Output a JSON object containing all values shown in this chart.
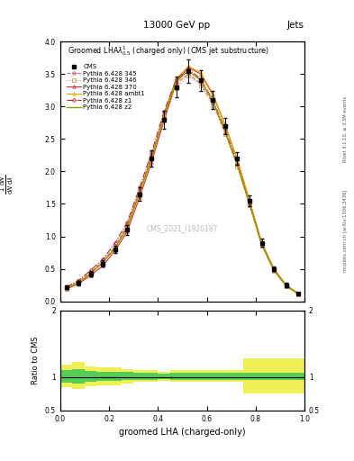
{
  "title_top": "13000 GeV pp",
  "title_right": "Jets",
  "plot_title": "Groomed LHA$\\lambda^{1}_{0.5}$ (charged only) (CMS jet substructure)",
  "xlabel": "groomed LHA (charged-only)",
  "ylabel_main": "$\\frac{1}{\\mathrm{d}N}\\frac{\\mathrm{d}N}{\\mathrm{d}\\lambda}$",
  "ylabel_ratio": "Ratio to CMS",
  "watermark": "CMS_2021_I1920187",
  "rivet_text": "Rivet 3.1.10, ≥ 3.3M events",
  "arxiv_text": "mcplots.cern.ch [arXiv:1306.3436]",
  "x_bins": [
    0.0,
    0.05,
    0.1,
    0.15,
    0.2,
    0.25,
    0.3,
    0.35,
    0.4,
    0.45,
    0.5,
    0.55,
    0.6,
    0.65,
    0.7,
    0.75,
    0.8,
    0.85,
    0.9,
    0.95,
    1.0
  ],
  "cms_data": [
    0.22,
    0.28,
    0.42,
    0.58,
    0.8,
    1.1,
    1.65,
    2.2,
    2.8,
    3.3,
    3.55,
    3.4,
    3.1,
    2.7,
    2.2,
    1.55,
    0.9,
    0.5,
    0.25,
    0.12
  ],
  "cms_errors": [
    0.03,
    0.03,
    0.04,
    0.05,
    0.06,
    0.08,
    0.1,
    0.12,
    0.14,
    0.16,
    0.18,
    0.16,
    0.14,
    0.12,
    0.1,
    0.08,
    0.06,
    0.04,
    0.03,
    0.02
  ],
  "pythia_345": [
    0.2,
    0.3,
    0.45,
    0.62,
    0.85,
    1.18,
    1.7,
    2.25,
    2.85,
    3.35,
    3.5,
    3.35,
    3.05,
    2.6,
    2.1,
    1.5,
    0.88,
    0.48,
    0.24,
    0.11
  ],
  "pythia_346": [
    0.21,
    0.31,
    0.44,
    0.6,
    0.83,
    1.15,
    1.68,
    2.22,
    2.82,
    3.28,
    3.48,
    3.32,
    3.02,
    2.58,
    2.08,
    1.48,
    0.86,
    0.47,
    0.23,
    0.11
  ],
  "pythia_370": [
    0.19,
    0.27,
    0.4,
    0.55,
    0.78,
    1.08,
    1.6,
    2.15,
    2.78,
    3.38,
    3.6,
    3.5,
    3.18,
    2.72,
    2.18,
    1.55,
    0.9,
    0.5,
    0.25,
    0.12
  ],
  "pythia_ambt1": [
    0.2,
    0.29,
    0.43,
    0.6,
    0.82,
    1.12,
    1.65,
    2.2,
    2.88,
    3.42,
    3.62,
    3.52,
    3.2,
    2.72,
    2.18,
    1.55,
    0.9,
    0.5,
    0.25,
    0.12
  ],
  "pythia_z1": [
    0.22,
    0.32,
    0.48,
    0.65,
    0.9,
    1.22,
    1.75,
    2.3,
    2.92,
    3.42,
    3.58,
    3.42,
    3.1,
    2.65,
    2.12,
    1.5,
    0.88,
    0.48,
    0.24,
    0.11
  ],
  "pythia_z2": [
    0.2,
    0.29,
    0.43,
    0.6,
    0.82,
    1.14,
    1.68,
    2.22,
    2.85,
    3.38,
    3.55,
    3.4,
    3.08,
    2.62,
    2.1,
    1.5,
    0.88,
    0.48,
    0.24,
    0.11
  ],
  "ratio_green_lo": [
    0.92,
    0.9,
    0.93,
    0.94,
    0.94,
    0.95,
    0.96,
    0.96,
    0.97,
    0.96,
    0.96,
    0.96,
    0.96,
    0.96,
    0.96,
    0.96,
    0.96,
    0.96,
    0.96,
    0.96
  ],
  "ratio_green_hi": [
    1.1,
    1.12,
    1.09,
    1.08,
    1.08,
    1.07,
    1.06,
    1.06,
    1.05,
    1.06,
    1.06,
    1.06,
    1.06,
    1.06,
    1.06,
    1.06,
    1.06,
    1.06,
    1.06,
    1.06
  ],
  "ratio_yellow_lo": [
    0.85,
    0.82,
    0.86,
    0.88,
    0.88,
    0.9,
    0.93,
    0.93,
    0.94,
    0.93,
    0.93,
    0.93,
    0.93,
    0.93,
    0.93,
    0.75,
    0.75,
    0.75,
    0.75,
    0.75
  ],
  "ratio_yellow_hi": [
    1.18,
    1.22,
    1.16,
    1.14,
    1.14,
    1.12,
    1.1,
    1.1,
    1.08,
    1.1,
    1.1,
    1.1,
    1.1,
    1.1,
    1.1,
    1.28,
    1.28,
    1.28,
    1.28,
    1.28
  ],
  "color_345": "#d4607a",
  "color_346": "#c8a060",
  "color_370": "#cc3344",
  "color_ambt1": "#ddaa00",
  "color_z1": "#bb2233",
  "color_z2": "#999900",
  "ylim_main": [
    0,
    4.0
  ],
  "ylim_ratio": [
    0.5,
    2.0
  ],
  "xlim": [
    0.0,
    1.0
  ],
  "background_color": "#ffffff"
}
